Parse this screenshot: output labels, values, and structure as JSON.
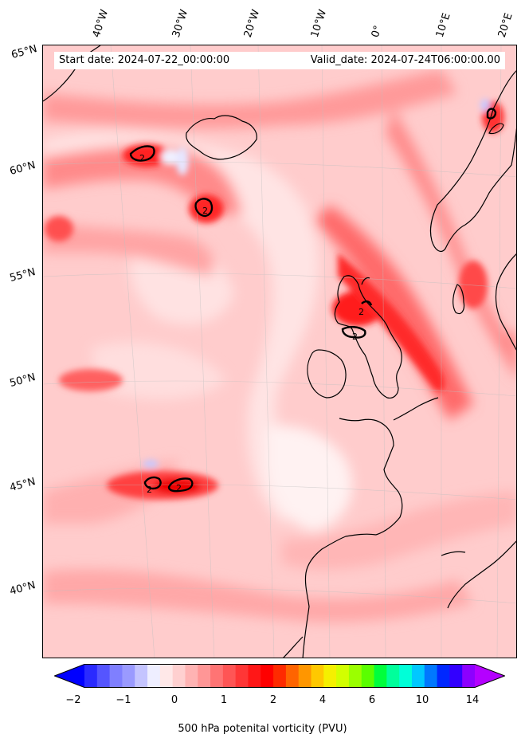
{
  "map": {
    "start_date": "Start date: 2024-07-22_00:00:00",
    "valid_date": "Valid_date: 2024-07-24T06:00:00.00",
    "lon_labels": [
      "40°W",
      "30°W",
      "20°W",
      "10°W",
      "0°",
      "10°E",
      "20°E"
    ],
    "lat_labels": [
      "65°N",
      "60°N",
      "55°N",
      "50°N",
      "45°N",
      "40°N"
    ],
    "contour_labels": [
      "2",
      "2",
      "2",
      "2",
      "2",
      "2"
    ]
  },
  "colorbar": {
    "title": "500 hPa potenital vorticity (PVU)",
    "tick_labels": [
      "−2",
      "−1",
      "0",
      "1",
      "2",
      "4",
      "6",
      "10",
      "14"
    ],
    "colors": [
      "#0000ff",
      "#2a2aff",
      "#5555ff",
      "#7f7fff",
      "#9a9aff",
      "#c4c4ff",
      "#eeeeff",
      "#ffe8e8",
      "#ffd0d0",
      "#ffb3b3",
      "#ff9696",
      "#ff7474",
      "#ff5555",
      "#ff3636",
      "#ff1717",
      "#ff0000",
      "#ff2a00",
      "#ff6400",
      "#ff9600",
      "#ffc800",
      "#f5f000",
      "#d2ff00",
      "#9bff00",
      "#5aff00",
      "#00ff3c",
      "#00ff9b",
      "#00ffd8",
      "#00c8ff",
      "#0078ff",
      "#0028ff",
      "#3200ff",
      "#8c00ff",
      "#b400ff"
    ]
  }
}
